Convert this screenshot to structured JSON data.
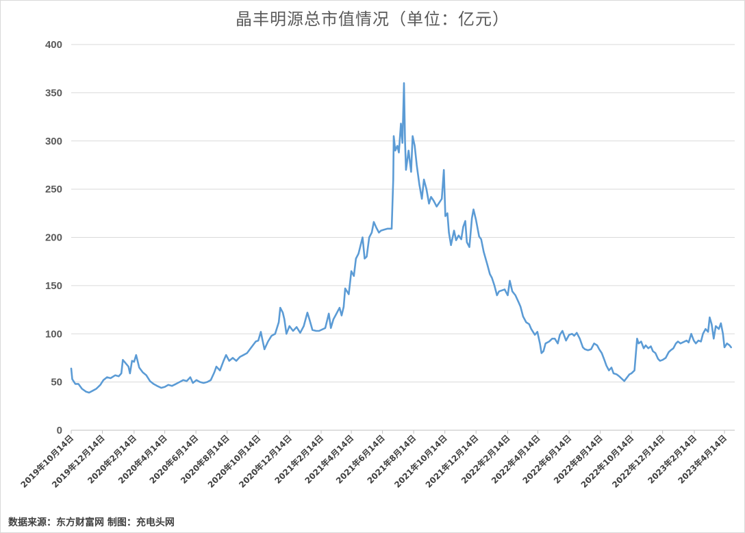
{
  "chart_data": {
    "type": "line",
    "title": "晶丰明源总市值情况（单位：亿元）",
    "ylim": [
      0,
      400
    ],
    "yticks": [
      0,
      50,
      100,
      150,
      200,
      250,
      300,
      350,
      400
    ],
    "grid": true,
    "x_tick_labels": [
      "2019年10月14日",
      "2019年12月14日",
      "2020年2月14日",
      "2020年4月14日",
      "2020年6月14日",
      "2020年8月14日",
      "2020年10月14日",
      "2020年12月14日",
      "2021年2月14日",
      "2021年4月14日",
      "2021年6月14日",
      "2021年8月14日",
      "2021年10月14日",
      "2021年12月14日",
      "2022年2月14日",
      "2022年4月14日",
      "2022年6月14日",
      "2022年8月14日",
      "2022年10月14日",
      "2022年12月14日",
      "2023年2月14日",
      "2023年4月14日"
    ],
    "series": [
      {
        "color": "#5b9bd5",
        "points": [
          [
            "2019-10-14",
            64
          ],
          [
            "2019-10-16",
            53
          ],
          [
            "2019-10-22",
            48
          ],
          [
            "2019-10-28",
            48
          ],
          [
            "2019-11-04",
            43
          ],
          [
            "2019-11-12",
            40
          ],
          [
            "2019-11-18",
            39
          ],
          [
            "2019-11-25",
            41
          ],
          [
            "2019-12-02",
            43
          ],
          [
            "2019-12-10",
            47
          ],
          [
            "2019-12-16",
            52
          ],
          [
            "2019-12-23",
            55
          ],
          [
            "2019-12-30",
            54
          ],
          [
            "2020-01-08",
            57
          ],
          [
            "2020-01-15",
            56
          ],
          [
            "2020-01-20",
            59
          ],
          [
            "2020-01-23",
            73
          ],
          [
            "2020-02-03",
            66
          ],
          [
            "2020-02-06",
            59
          ],
          [
            "2020-02-10",
            72
          ],
          [
            "2020-02-14",
            71
          ],
          [
            "2020-02-18",
            78
          ],
          [
            "2020-02-24",
            65
          ],
          [
            "2020-03-02",
            60
          ],
          [
            "2020-03-09",
            57
          ],
          [
            "2020-03-16",
            51
          ],
          [
            "2020-03-23",
            48
          ],
          [
            "2020-03-30",
            46
          ],
          [
            "2020-04-07",
            44
          ],
          [
            "2020-04-14",
            45
          ],
          [
            "2020-04-21",
            47
          ],
          [
            "2020-04-28",
            46
          ],
          [
            "2020-05-06",
            48
          ],
          [
            "2020-05-13",
            50
          ],
          [
            "2020-05-20",
            52
          ],
          [
            "2020-05-27",
            51
          ],
          [
            "2020-06-03",
            55
          ],
          [
            "2020-06-08",
            49
          ],
          [
            "2020-06-15",
            52
          ],
          [
            "2020-06-22",
            50
          ],
          [
            "2020-06-29",
            49
          ],
          [
            "2020-07-06",
            50
          ],
          [
            "2020-07-13",
            52
          ],
          [
            "2020-07-20",
            60
          ],
          [
            "2020-07-24",
            66
          ],
          [
            "2020-07-31",
            62
          ],
          [
            "2020-08-07",
            72
          ],
          [
            "2020-08-12",
            78
          ],
          [
            "2020-08-18",
            72
          ],
          [
            "2020-08-25",
            75
          ],
          [
            "2020-09-01",
            72
          ],
          [
            "2020-09-08",
            76
          ],
          [
            "2020-09-15",
            78
          ],
          [
            "2020-09-22",
            80
          ],
          [
            "2020-09-29",
            85
          ],
          [
            "2020-10-09",
            92
          ],
          [
            "2020-10-14",
            93
          ],
          [
            "2020-10-19",
            102
          ],
          [
            "2020-10-22",
            94
          ],
          [
            "2020-10-26",
            84
          ],
          [
            "2020-11-02",
            92
          ],
          [
            "2020-11-09",
            98
          ],
          [
            "2020-11-16",
            100
          ],
          [
            "2020-11-23",
            112
          ],
          [
            "2020-11-26",
            127
          ],
          [
            "2020-12-01",
            122
          ],
          [
            "2020-12-04",
            115
          ],
          [
            "2020-12-08",
            100
          ],
          [
            "2020-12-14",
            108
          ],
          [
            "2020-12-21",
            103
          ],
          [
            "2020-12-28",
            107
          ],
          [
            "2021-01-04",
            101
          ],
          [
            "2021-01-11",
            108
          ],
          [
            "2021-01-18",
            122
          ],
          [
            "2021-01-22",
            115
          ],
          [
            "2021-01-28",
            104
          ],
          [
            "2021-02-04",
            103
          ],
          [
            "2021-02-10",
            103
          ],
          [
            "2021-02-22",
            106
          ],
          [
            "2021-03-01",
            121
          ],
          [
            "2021-03-05",
            106
          ],
          [
            "2021-03-10",
            115
          ],
          [
            "2021-03-16",
            121
          ],
          [
            "2021-03-22",
            127
          ],
          [
            "2021-03-26",
            119
          ],
          [
            "2021-03-30",
            128
          ],
          [
            "2021-04-02",
            147
          ],
          [
            "2021-04-09",
            141
          ],
          [
            "2021-04-14",
            165
          ],
          [
            "2021-04-19",
            160
          ],
          [
            "2021-04-23",
            178
          ],
          [
            "2021-04-28",
            183
          ],
          [
            "2021-05-06",
            200
          ],
          [
            "2021-05-10",
            178
          ],
          [
            "2021-05-14",
            180
          ],
          [
            "2021-05-19",
            200
          ],
          [
            "2021-05-24",
            205
          ],
          [
            "2021-05-28",
            216
          ],
          [
            "2021-06-02",
            210
          ],
          [
            "2021-06-07",
            205
          ],
          [
            "2021-06-11",
            207
          ],
          [
            "2021-06-17",
            208
          ],
          [
            "2021-06-24",
            209
          ],
          [
            "2021-07-02",
            209
          ],
          [
            "2021-07-05",
            260
          ],
          [
            "2021-07-06",
            305
          ],
          [
            "2021-07-09",
            290
          ],
          [
            "2021-07-13",
            295
          ],
          [
            "2021-07-16",
            288
          ],
          [
            "2021-07-20",
            318
          ],
          [
            "2021-07-23",
            298
          ],
          [
            "2021-07-26",
            360
          ],
          [
            "2021-07-28",
            300
          ],
          [
            "2021-07-30",
            270
          ],
          [
            "2021-08-04",
            290
          ],
          [
            "2021-08-09",
            268
          ],
          [
            "2021-08-12",
            305
          ],
          [
            "2021-08-16",
            295
          ],
          [
            "2021-08-20",
            275
          ],
          [
            "2021-08-25",
            255
          ],
          [
            "2021-08-30",
            240
          ],
          [
            "2021-09-03",
            260
          ],
          [
            "2021-09-08",
            250
          ],
          [
            "2021-09-13",
            235
          ],
          [
            "2021-09-17",
            242
          ],
          [
            "2021-09-22",
            238
          ],
          [
            "2021-09-28",
            232
          ],
          [
            "2021-10-08",
            240
          ],
          [
            "2021-10-12",
            270
          ],
          [
            "2021-10-15",
            222
          ],
          [
            "2021-10-19",
            225
          ],
          [
            "2021-10-22",
            205
          ],
          [
            "2021-10-26",
            192
          ],
          [
            "2021-11-01",
            207
          ],
          [
            "2021-11-05",
            197
          ],
          [
            "2021-11-10",
            202
          ],
          [
            "2021-11-15",
            198
          ],
          [
            "2021-11-19",
            211
          ],
          [
            "2021-11-23",
            217
          ],
          [
            "2021-11-26",
            195
          ],
          [
            "2021-12-01",
            190
          ],
          [
            "2021-12-06",
            220
          ],
          [
            "2021-12-09",
            229
          ],
          [
            "2021-12-14",
            218
          ],
          [
            "2021-12-20",
            201
          ],
          [
            "2021-12-24",
            198
          ],
          [
            "2021-12-29",
            185
          ],
          [
            "2022-01-05",
            172
          ],
          [
            "2022-01-10",
            162
          ],
          [
            "2022-01-14",
            158
          ],
          [
            "2022-01-19",
            150
          ],
          [
            "2022-01-24",
            140
          ],
          [
            "2022-01-28",
            144
          ],
          [
            "2022-02-08",
            146
          ],
          [
            "2022-02-14",
            140
          ],
          [
            "2022-02-18",
            155
          ],
          [
            "2022-02-23",
            144
          ],
          [
            "2022-03-01",
            140
          ],
          [
            "2022-03-07",
            133
          ],
          [
            "2022-03-11",
            128
          ],
          [
            "2022-03-16",
            118
          ],
          [
            "2022-03-22",
            112
          ],
          [
            "2022-03-28",
            110
          ],
          [
            "2022-04-01",
            105
          ],
          [
            "2022-04-08",
            99
          ],
          [
            "2022-04-13",
            102
          ],
          [
            "2022-04-18",
            90
          ],
          [
            "2022-04-21",
            80
          ],
          [
            "2022-04-25",
            82
          ],
          [
            "2022-04-29",
            90
          ],
          [
            "2022-05-06",
            92
          ],
          [
            "2022-05-12",
            95
          ],
          [
            "2022-05-17",
            95
          ],
          [
            "2022-05-23",
            90
          ],
          [
            "2022-05-27",
            99
          ],
          [
            "2022-06-01",
            103
          ],
          [
            "2022-06-08",
            93
          ],
          [
            "2022-06-14",
            99
          ],
          [
            "2022-06-20",
            100
          ],
          [
            "2022-06-24",
            98
          ],
          [
            "2022-06-29",
            101
          ],
          [
            "2022-07-05",
            95
          ],
          [
            "2022-07-11",
            86
          ],
          [
            "2022-07-15",
            84
          ],
          [
            "2022-07-21",
            83
          ],
          [
            "2022-07-27",
            84
          ],
          [
            "2022-08-02",
            90
          ],
          [
            "2022-08-08",
            88
          ],
          [
            "2022-08-12",
            84
          ],
          [
            "2022-08-17",
            80
          ],
          [
            "2022-08-22",
            73
          ],
          [
            "2022-08-26",
            67
          ],
          [
            "2022-08-31",
            62
          ],
          [
            "2022-09-05",
            65
          ],
          [
            "2022-09-09",
            59
          ],
          [
            "2022-09-15",
            58
          ],
          [
            "2022-09-20",
            56
          ],
          [
            "2022-09-26",
            53
          ],
          [
            "2022-09-30",
            51
          ],
          [
            "2022-10-10",
            58
          ],
          [
            "2022-10-14",
            59
          ],
          [
            "2022-10-20",
            62
          ],
          [
            "2022-10-25",
            95
          ],
          [
            "2022-10-28",
            90
          ],
          [
            "2022-11-02",
            92
          ],
          [
            "2022-11-07",
            85
          ],
          [
            "2022-11-11",
            88
          ],
          [
            "2022-11-16",
            85
          ],
          [
            "2022-11-21",
            87
          ],
          [
            "2022-11-25",
            82
          ],
          [
            "2022-11-30",
            80
          ],
          [
            "2022-12-05",
            74
          ],
          [
            "2022-12-09",
            72
          ],
          [
            "2022-12-14",
            73
          ],
          [
            "2022-12-20",
            75
          ],
          [
            "2022-12-26",
            81
          ],
          [
            "2022-12-30",
            83
          ],
          [
            "2023-01-04",
            85
          ],
          [
            "2023-01-09",
            90
          ],
          [
            "2023-01-13",
            92
          ],
          [
            "2023-01-18",
            90
          ],
          [
            "2023-01-30",
            93
          ],
          [
            "2023-02-03",
            91
          ],
          [
            "2023-02-08",
            100
          ],
          [
            "2023-02-13",
            93
          ],
          [
            "2023-02-17",
            90
          ],
          [
            "2023-02-22",
            93
          ],
          [
            "2023-02-27",
            92
          ],
          [
            "2023-03-03",
            100
          ],
          [
            "2023-03-08",
            105
          ],
          [
            "2023-03-13",
            102
          ],
          [
            "2023-03-16",
            117
          ],
          [
            "2023-03-20",
            110
          ],
          [
            "2023-03-24",
            95
          ],
          [
            "2023-03-28",
            108
          ],
          [
            "2023-04-03",
            105
          ],
          [
            "2023-04-07",
            111
          ],
          [
            "2023-04-11",
            100
          ],
          [
            "2023-04-14",
            86
          ],
          [
            "2023-04-19",
            90
          ],
          [
            "2023-04-24",
            88
          ],
          [
            "2023-04-27",
            86
          ]
        ]
      }
    ]
  },
  "source_text": "数据来源：东方财富网  制图：充电头网"
}
